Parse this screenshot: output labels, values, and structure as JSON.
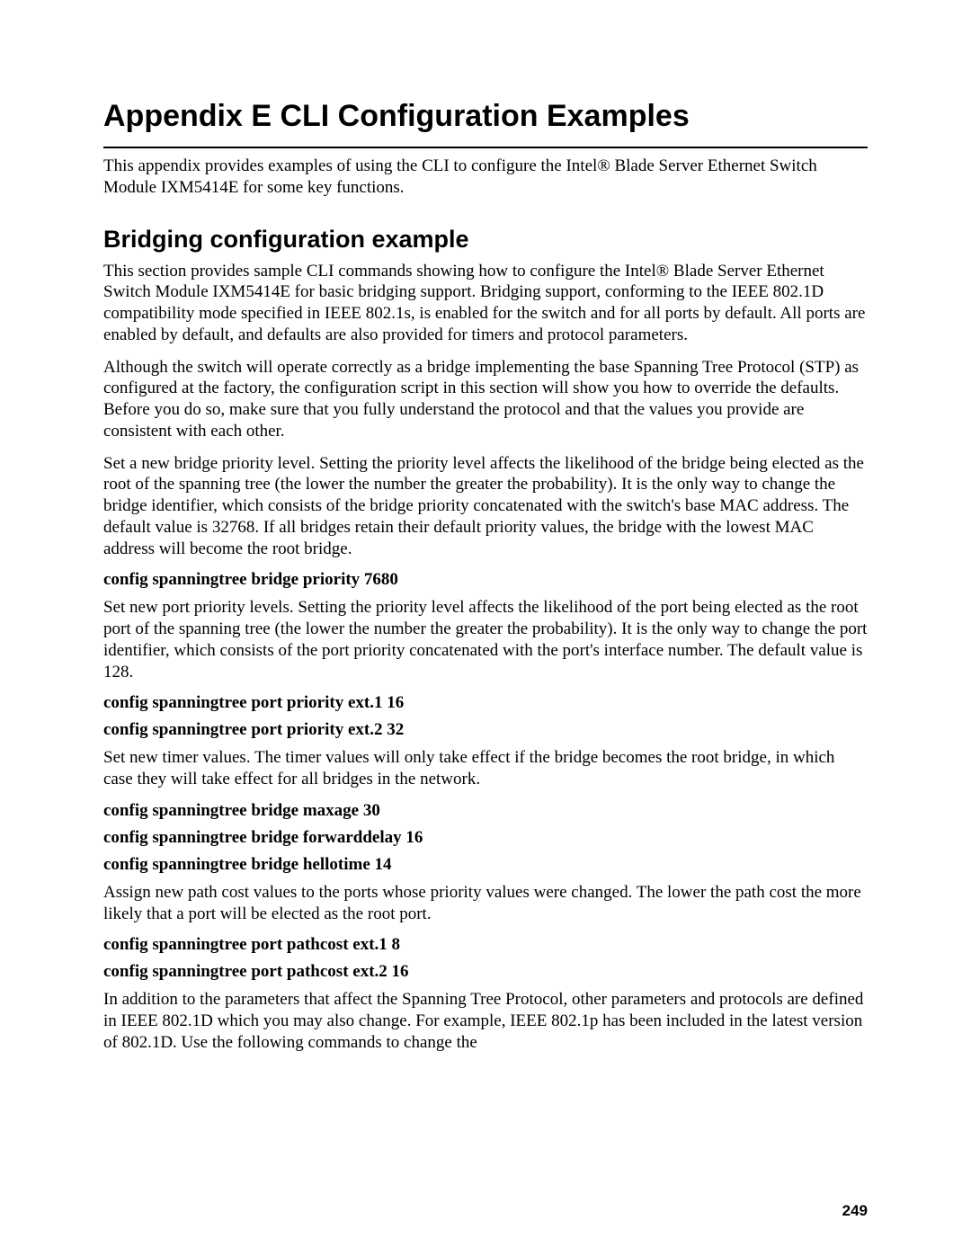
{
  "title": "Appendix E CLI Configuration Examples",
  "intro": "This appendix provides examples of using the CLI to configure the Intel® Blade Server Ethernet Switch Module IXM5414E for some key functions.",
  "section_title": "Bridging configuration example",
  "p1": "This section provides sample CLI commands showing how to configure the Intel® Blade Server Ethernet Switch Module IXM5414E for basic bridging support. Bridging support, conforming to the IEEE 802.1D compatibility mode specified in IEEE 802.1s, is enabled for the switch and for all ports by default. All ports are enabled by default, and defaults are also provided for timers and protocol parameters.",
  "p2": "Although the switch will operate correctly as a bridge implementing the base Spanning Tree Protocol (STP) as configured at the factory, the configuration script in this section will show you how to override the defaults. Before you do so, make sure that you fully understand the protocol and that the values you provide are consistent with each other.",
  "block1": "Set a new bridge priority level. Setting the priority level affects the likelihood of the bridge being elected as the root of the spanning tree (the lower the number the greater the probability). It is the only way to change the bridge identifier, which consists of the bridge priority concatenated with the switch's base MAC address. The default value is 32768. If all bridges retain their default priority values, the bridge with the lowest MAC address will become the root bridge.",
  "cmd1": "config spanningtree bridge priority 7680",
  "block2": "Set new port priority levels. Setting the priority level affects the likelihood of the port being elected as the root port of the spanning tree (the lower the number the greater the probability). It is the only way to change the port identifier, which consists of the port priority concatenated with the port's interface number. The default value is 128.",
  "cmd2a": "config spanningtree port priority ext.1 16",
  "cmd2b": "config spanningtree port priority ext.2 32",
  "block3": "Set new timer values. The timer values will only take effect if the bridge becomes the root bridge, in which case they will take effect for all bridges in the network.",
  "cmd3a": "config spanningtree bridge maxage 30",
  "cmd3b": "config spanningtree bridge forwarddelay 16",
  "cmd3c": "config spanningtree bridge hellotime 14",
  "block4": "Assign new path cost values to the ports whose priority values were changed. The lower the path cost the more likely that a port will be elected as the root port.",
  "cmd4a": "config spanningtree port pathcost ext.1 8",
  "cmd4b": "config spanningtree port pathcost ext.2 16",
  "block5": "In addition to the parameters that affect the Spanning Tree Protocol, other parameters and protocols are defined in IEEE 802.1D which you may also change. For example, IEEE 802.1p has been included in the latest version of 802.1D. Use the following commands to change the",
  "page_number": "249"
}
